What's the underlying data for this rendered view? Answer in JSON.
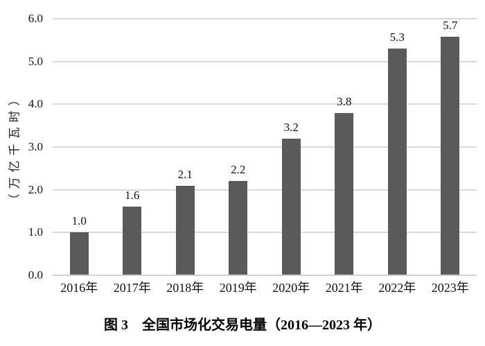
{
  "chart_data": {
    "type": "bar",
    "title": "图 3　全国市场化交易电量（2016—2023 年）",
    "categories": [
      "2016年",
      "2017年",
      "2018年",
      "2019年",
      "2020年",
      "2021年",
      "2022年",
      "2023年"
    ],
    "values": [
      1.0,
      1.6,
      2.1,
      2.2,
      3.2,
      3.8,
      5.3,
      5.7
    ],
    "value_labels": [
      "1.0",
      "1.6",
      "2.1",
      "2.2",
      "3.2",
      "3.8",
      "5.3",
      "5.7"
    ],
    "xlabel": "",
    "ylabel": "（万亿千瓦时）",
    "yticks": [
      "6.0",
      "5.0",
      "4.0",
      "3.0",
      "2.0",
      "1.0",
      "0.0"
    ],
    "ylim": [
      0.0,
      6.0
    ],
    "grid": "horizontal",
    "legend": "none",
    "bar_color": "#5a5a5a",
    "grid_color": "#d9d9d9",
    "axis_color": "#cfcfcf"
  },
  "caption": {
    "text": "图 3　全国市场化交易电量（2016—2023 年）"
  }
}
